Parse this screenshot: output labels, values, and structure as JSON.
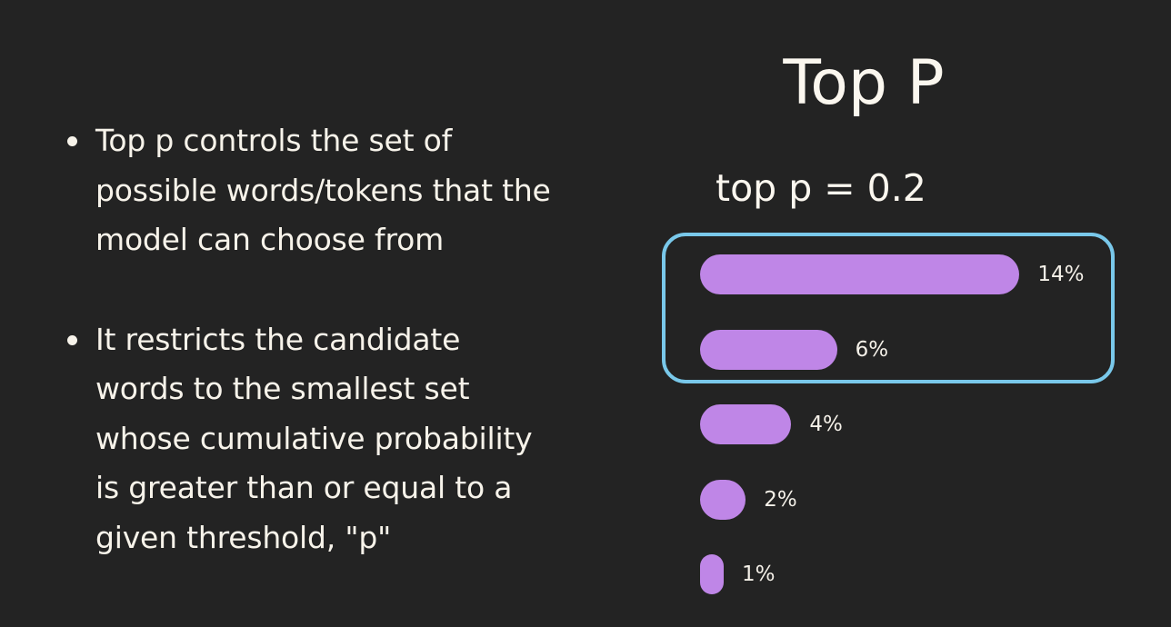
{
  "slide": {
    "bullets": [
      {
        "lines": [
          "Top p controls the set of",
          "possible words/tokens that the",
          "model can choose from"
        ]
      },
      {
        "lines": [
          "It restricts the candidate",
          "words to the smallest set",
          "whose cumulative probability",
          "is greater than or equal to a",
          "given threshold, \"p\""
        ]
      }
    ],
    "title": "Top P",
    "subtitle": "top p = 0.2",
    "colors": {
      "background": "#232323",
      "text": "#f7f3ea",
      "bar": "#bf86e7",
      "selection_outline": "#79c8ea"
    }
  },
  "chart_data": {
    "type": "bar",
    "orientation": "horizontal",
    "categories": [
      "",
      "",
      "",
      "",
      ""
    ],
    "values": [
      14,
      6,
      4,
      2,
      1
    ],
    "data_labels": [
      "14%",
      "6%",
      "4%",
      "2%",
      "1%"
    ],
    "highlighted_indices": [
      0,
      1
    ],
    "title": "",
    "xlabel": "",
    "ylabel": "",
    "grid": false,
    "legend": false
  }
}
